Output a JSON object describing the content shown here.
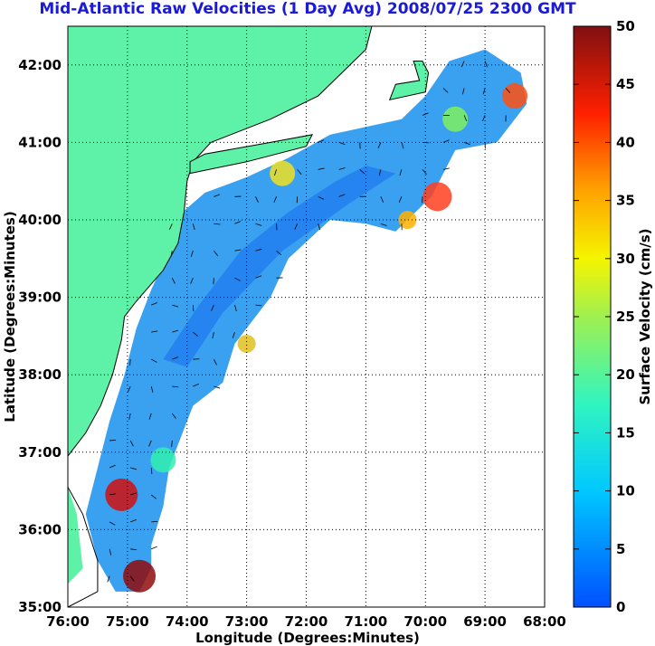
{
  "title": "Mid-Atlantic Raw Velocities (1 Day Avg) 2008/07/25 2300 GMT",
  "map": {
    "xlabel": "Longitude (Degrees:Minutes)",
    "ylabel": "Latitude (Degrees:Minutes)",
    "lon_range": [
      -76,
      -68
    ],
    "lat_range": [
      35,
      42.5
    ],
    "lon_ticks": [
      "76:00",
      "75:00",
      "74:00",
      "73:00",
      "72:00",
      "71:00",
      "70:00",
      "69:00",
      "68:00"
    ],
    "lat_ticks": [
      "35:00",
      "36:00",
      "37:00",
      "38:00",
      "39:00",
      "40:00",
      "41:00",
      "42:00"
    ],
    "land_color": "#5ef2a8",
    "water_color": "#ffffff",
    "grid": "dotted"
  },
  "colorbar": {
    "label": "Surface Velocity (cm/s)",
    "range": [
      0,
      50
    ],
    "ticks": [
      "0",
      "5",
      "10",
      "15",
      "20",
      "25",
      "30",
      "35",
      "40",
      "45",
      "50"
    ],
    "colormap": "jet"
  }
}
